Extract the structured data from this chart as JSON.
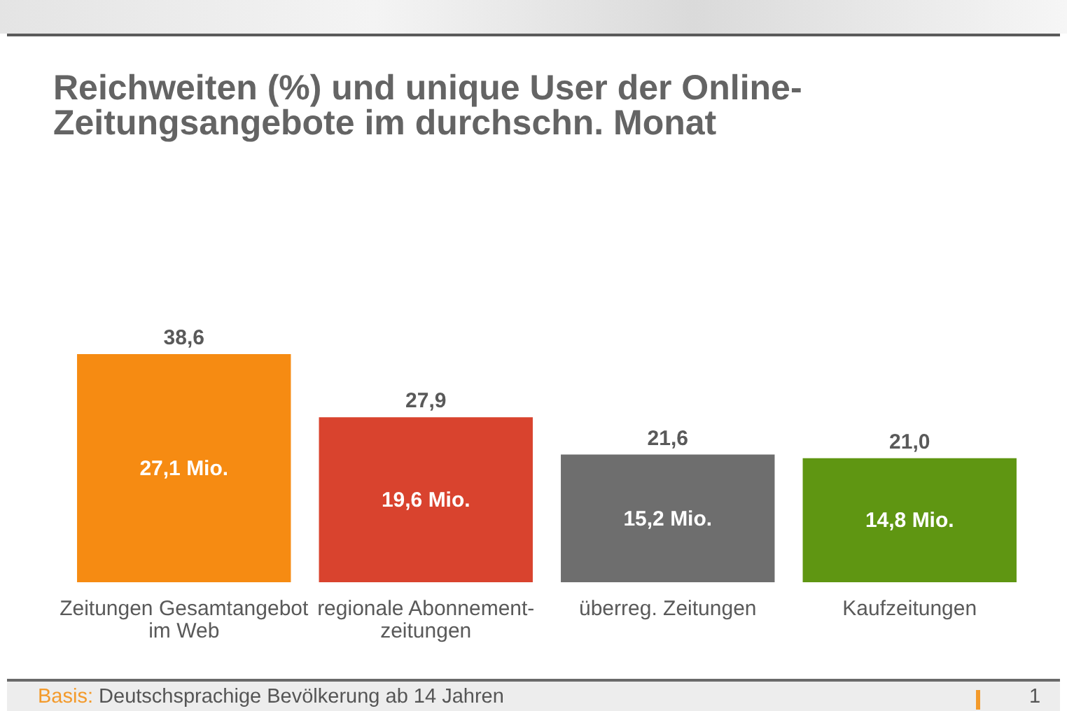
{
  "chart_data": {
    "type": "bar",
    "title": "Reichweiten (%) und unique User der Online-\nZeitungsangebote im durchschn. Monat",
    "categories": [
      "Zeitungen Gesamtangebot\nim Web",
      "regionale Abonnement-\nzeitungen",
      "überreg. Zeitungen",
      "Kaufzeitungen"
    ],
    "values": [
      38.6,
      27.9,
      21.6,
      21.0
    ],
    "colors": [
      "#f68b12",
      "#d9432e",
      "#6e6e6e",
      "#5f9612"
    ],
    "value_labels": [
      "38,6",
      "27,9",
      "21,6",
      "21,0"
    ],
    "tick_labels": "x",
    "annotations": [
      "27,1 Mio.",
      "19,6 Mio.",
      "15,2 Mio.",
      "14,8 Mio.",
      "Basis: Deutschsprachige Bevölkerung ab 14 Jahren",
      "1"
    ]
  }
}
